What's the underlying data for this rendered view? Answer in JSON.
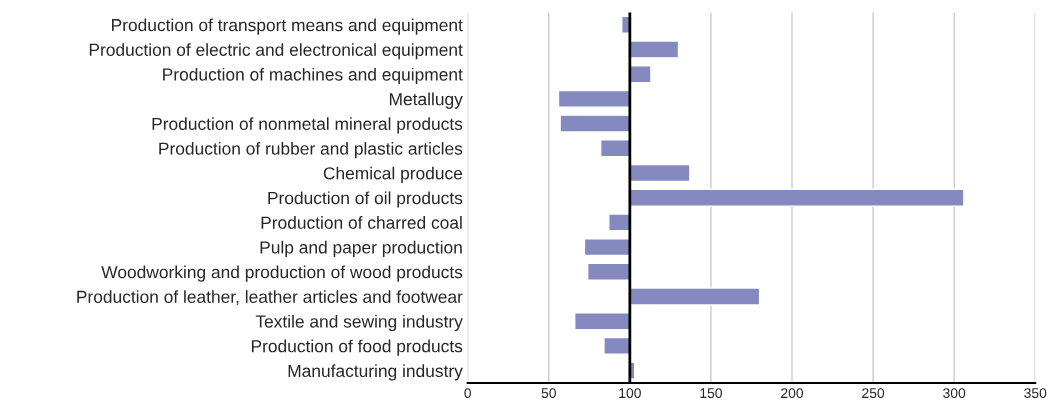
{
  "chart_data": {
    "type": "bar",
    "orientation": "horizontal",
    "categories": [
      "Production of transport means and equipment",
      "Production of electric and electronical equipment",
      "Production of machines and equipment",
      "Metallugy",
      "Production of nonmetal mineral products",
      "Production of rubber and plastic articles",
      "Chemical produce",
      "Production of oil products",
      "Production of charred coal",
      "Pulp and paper production",
      "Woodworking and production of wood products",
      "Production of leather, leather articles and footwear",
      "Textile and sewing industry",
      "Production of food products",
      "Manufacturing industry"
    ],
    "base": [
      100,
      100,
      100,
      100,
      100,
      100,
      100,
      100,
      100,
      100,
      100,
      100,
      100,
      100,
      100
    ],
    "values": [
      -5,
      30,
      13,
      -44,
      -43,
      -18,
      37,
      206,
      -13,
      -28,
      -26,
      80,
      -34,
      -16,
      3
    ],
    "color": "#8489c0",
    "xlim": [
      0,
      350
    ],
    "xticks": [
      0,
      50,
      100,
      150,
      200,
      250,
      300,
      350
    ],
    "ref_lines": [
      {
        "axis": "x",
        "value": 100,
        "color": "#000000"
      }
    ],
    "grid": "x",
    "legend": false
  }
}
